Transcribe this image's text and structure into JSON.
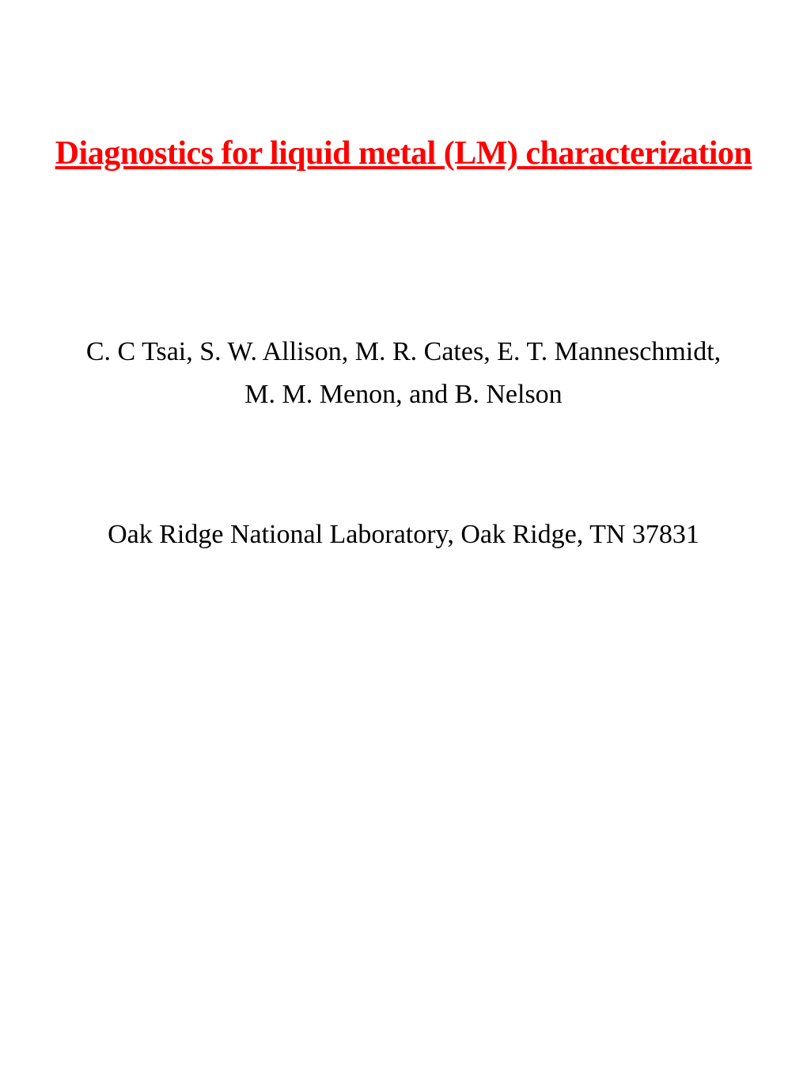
{
  "slide": {
    "title": "Diagnostics for liquid metal (LM) characterization",
    "authors_line1": "C. C Tsai, S. W. Allison, M. R. Cates, E. T. Manneschmidt,",
    "authors_line2": "M. M. Menon, and B. Nelson",
    "affiliation": "Oak Ridge National Laboratory, Oak Ridge, TN 37831",
    "title_color": "#ff0000",
    "body_color": "#000000",
    "background_color": "#ffffff",
    "title_fontsize": 42,
    "body_fontsize": 34
  }
}
